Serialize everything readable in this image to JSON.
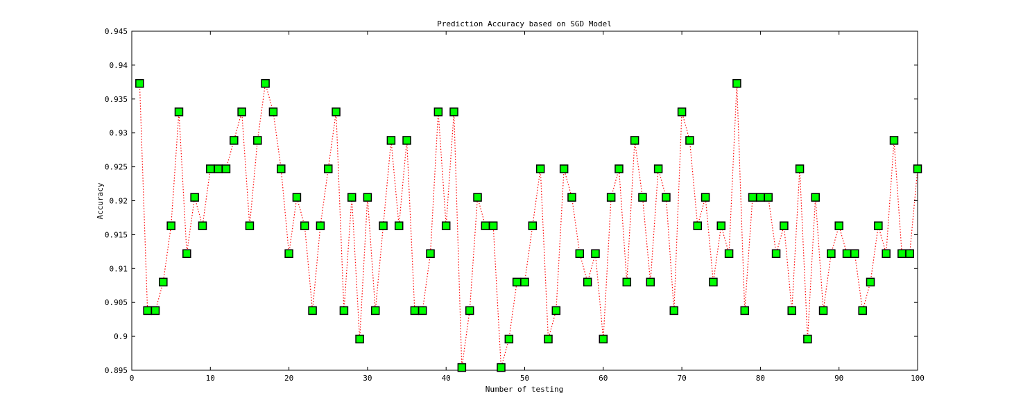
{
  "chart_data": {
    "type": "line",
    "title": "Prediction Accuracy based on SGD Model",
    "xlabel": "Number of testing",
    "ylabel": "Accuracy",
    "xlim": [
      0,
      100
    ],
    "ylim": [
      0.895,
      0.945
    ],
    "x_ticks": [
      "0",
      "10",
      "20",
      "30",
      "40",
      "50",
      "60",
      "70",
      "80",
      "90",
      "100"
    ],
    "y_ticks": [
      "0.895",
      "0.9",
      "0.905",
      "0.91",
      "0.915",
      "0.92",
      "0.925",
      "0.93",
      "0.935",
      "0.94",
      "0.945"
    ],
    "grid": false,
    "line_color": "#ff0000",
    "line_style": "dotted",
    "marker": "square",
    "marker_fill": "#00ff00",
    "marker_edge": "#000000",
    "series": [
      {
        "x": [
          1,
          2,
          3,
          4,
          5,
          6,
          7,
          8,
          9,
          10,
          11,
          12,
          13,
          14,
          15,
          16,
          17,
          18,
          19,
          20,
          21,
          22,
          23,
          24,
          25,
          26,
          27,
          28,
          29,
          30,
          31,
          32,
          33,
          34,
          35,
          36,
          37,
          38,
          39,
          40,
          41,
          42,
          43,
          44,
          45,
          46,
          47,
          48,
          49,
          50,
          51,
          52,
          53,
          54,
          55,
          56,
          57,
          58,
          59,
          60,
          61,
          62,
          63,
          64,
          65,
          66,
          67,
          68,
          69,
          70,
          71,
          72,
          73,
          74,
          75,
          76,
          77,
          78,
          79,
          80,
          81,
          82,
          83,
          84,
          85,
          86,
          87,
          88,
          89,
          90,
          91,
          92,
          93,
          94,
          95,
          96,
          97,
          98,
          99,
          100
        ],
        "values": [
          0.9373,
          0.9038,
          0.9038,
          0.908,
          0.9163,
          0.9331,
          0.9122,
          0.9205,
          0.9163,
          0.9247,
          0.9247,
          0.9247,
          0.9289,
          0.9331,
          0.9163,
          0.9289,
          0.9373,
          0.9331,
          0.9247,
          0.9122,
          0.9205,
          0.9163,
          0.9038,
          0.9163,
          0.9247,
          0.9331,
          0.9038,
          0.9205,
          0.8996,
          0.9205,
          0.9038,
          0.9163,
          0.9289,
          0.9163,
          0.9289,
          0.9038,
          0.9038,
          0.9122,
          0.9331,
          0.9163,
          0.9331,
          0.8954,
          0.9038,
          0.9205,
          0.9163,
          0.9163,
          0.8954,
          0.8996,
          0.908,
          0.908,
          0.9163,
          0.9247,
          0.8996,
          0.9038,
          0.9247,
          0.9205,
          0.9122,
          0.908,
          0.9122,
          0.8996,
          0.9205,
          0.9247,
          0.908,
          0.9289,
          0.9205,
          0.908,
          0.9247,
          0.9205,
          0.9038,
          0.9331,
          0.9289,
          0.9163,
          0.9205,
          0.908,
          0.9163,
          0.9122,
          0.9373,
          0.9038,
          0.9205,
          0.9205,
          0.9205,
          0.9122,
          0.9163,
          0.9038,
          0.9247,
          0.8996,
          0.9205,
          0.9038,
          0.9122,
          0.9163,
          0.9122,
          0.9122,
          0.9038,
          0.908,
          0.9163,
          0.9122,
          0.9289,
          0.9122,
          0.9122,
          0.9247
        ]
      }
    ]
  }
}
